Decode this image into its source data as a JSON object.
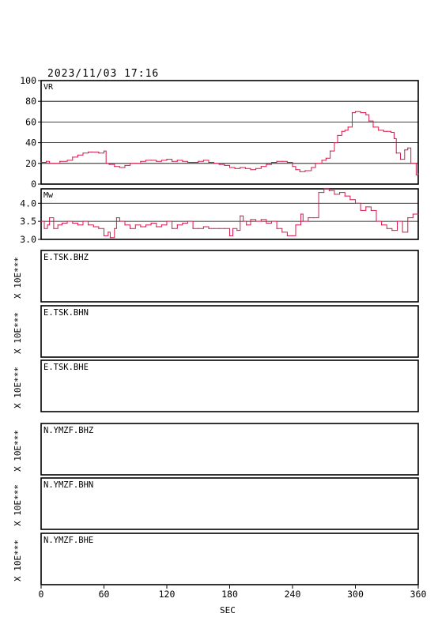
{
  "header": {
    "timestamp": "2023/11/03  17:16"
  },
  "chart_data": [
    {
      "type": "line",
      "panel": "VR",
      "title": "VR",
      "xlim": [
        0,
        360
      ],
      "ylim": [
        0,
        100
      ],
      "yticks": [
        "0",
        "20",
        "40",
        "60",
        "80",
        "100"
      ],
      "grid": true,
      "color": "#d4184b",
      "x": [
        0,
        5,
        8,
        12,
        18,
        25,
        30,
        35,
        40,
        45,
        48,
        55,
        60,
        62,
        65,
        70,
        75,
        80,
        85,
        90,
        95,
        100,
        105,
        110,
        115,
        120,
        125,
        130,
        135,
        140,
        145,
        150,
        155,
        160,
        165,
        170,
        175,
        180,
        185,
        190,
        195,
        200,
        205,
        210,
        215,
        220,
        225,
        230,
        235,
        240,
        243,
        247,
        252,
        258,
        262,
        268,
        272,
        276,
        280,
        283,
        287,
        290,
        293,
        297,
        300,
        305,
        310,
        313,
        317,
        322,
        327,
        330,
        334,
        337,
        339,
        343,
        347,
        350,
        353,
        358,
        360
      ],
      "values": [
        21,
        22,
        20,
        20,
        22,
        23,
        26,
        28,
        30,
        31,
        31,
        30,
        32,
        20,
        19,
        17,
        16,
        18,
        20,
        20,
        22,
        23,
        23,
        22,
        23,
        24,
        22,
        23,
        22,
        21,
        21,
        22,
        23,
        21,
        20,
        19,
        18,
        16,
        15,
        16,
        15,
        14,
        15,
        17,
        19,
        21,
        22,
        22,
        21,
        17,
        14,
        12,
        13,
        16,
        20,
        23,
        25,
        32,
        40,
        47,
        51,
        52,
        55,
        69,
        70,
        69,
        67,
        61,
        55,
        52,
        51,
        51,
        50,
        44,
        30,
        24,
        33,
        35,
        20,
        9,
        10
      ]
    },
    {
      "type": "line",
      "panel": "Mw",
      "title": "Mw",
      "xlim": [
        0,
        360
      ],
      "ylim": [
        3.0,
        4.4
      ],
      "yticks": [
        "3.0",
        "3.5",
        "4.0"
      ],
      "grid": true,
      "color": "#d4184b",
      "x": [
        0,
        3,
        6,
        8,
        12,
        16,
        20,
        25,
        30,
        35,
        40,
        45,
        50,
        55,
        60,
        64,
        66,
        70,
        72,
        75,
        80,
        85,
        90,
        95,
        100,
        105,
        110,
        115,
        120,
        125,
        130,
        135,
        140,
        145,
        150,
        155,
        160,
        165,
        170,
        175,
        180,
        183,
        187,
        190,
        193,
        196,
        200,
        205,
        210,
        215,
        220,
        225,
        230,
        235,
        240,
        243,
        248,
        250,
        255,
        260,
        265,
        270,
        275,
        280,
        285,
        290,
        295,
        300,
        305,
        310,
        315,
        320,
        325,
        330,
        335,
        340,
        345,
        350,
        355,
        360
      ],
      "values": [
        3.5,
        3.3,
        3.4,
        3.6,
        3.3,
        3.4,
        3.45,
        3.5,
        3.45,
        3.4,
        3.5,
        3.4,
        3.35,
        3.3,
        3.1,
        3.2,
        3.05,
        3.3,
        3.6,
        3.5,
        3.4,
        3.3,
        3.4,
        3.35,
        3.4,
        3.45,
        3.35,
        3.4,
        3.5,
        3.3,
        3.4,
        3.45,
        3.5,
        3.3,
        3.3,
        3.35,
        3.3,
        3.3,
        3.3,
        3.3,
        3.1,
        3.3,
        3.25,
        3.65,
        3.5,
        3.4,
        3.55,
        3.5,
        3.55,
        3.45,
        3.5,
        3.3,
        3.2,
        3.1,
        3.1,
        3.4,
        3.7,
        3.5,
        3.6,
        3.6,
        4.3,
        4.4,
        4.35,
        4.25,
        4.3,
        4.2,
        4.1,
        4.0,
        3.8,
        3.9,
        3.8,
        3.5,
        3.4,
        3.3,
        3.25,
        3.5,
        3.2,
        3.6,
        3.7,
        3.7
      ]
    }
  ],
  "waveform_panels": [
    {
      "station": "E.TSK.BHZ",
      "ylabel": "X 10E***"
    },
    {
      "station": "E.TSK.BHN",
      "ylabel": "X 10E***"
    },
    {
      "station": "E.TSK.BHE",
      "ylabel": "X 10E***"
    },
    {
      "station": "N.YMZF.BHZ",
      "ylabel": "X 10E***"
    },
    {
      "station": "N.YMZF.BHN",
      "ylabel": "X 10E***"
    },
    {
      "station": "N.YMZF.BHE",
      "ylabel": "X 10E***"
    }
  ],
  "x_axis": {
    "label": "SEC",
    "ticks": [
      "0",
      "60",
      "120",
      "180",
      "240",
      "300",
      "360"
    ]
  }
}
